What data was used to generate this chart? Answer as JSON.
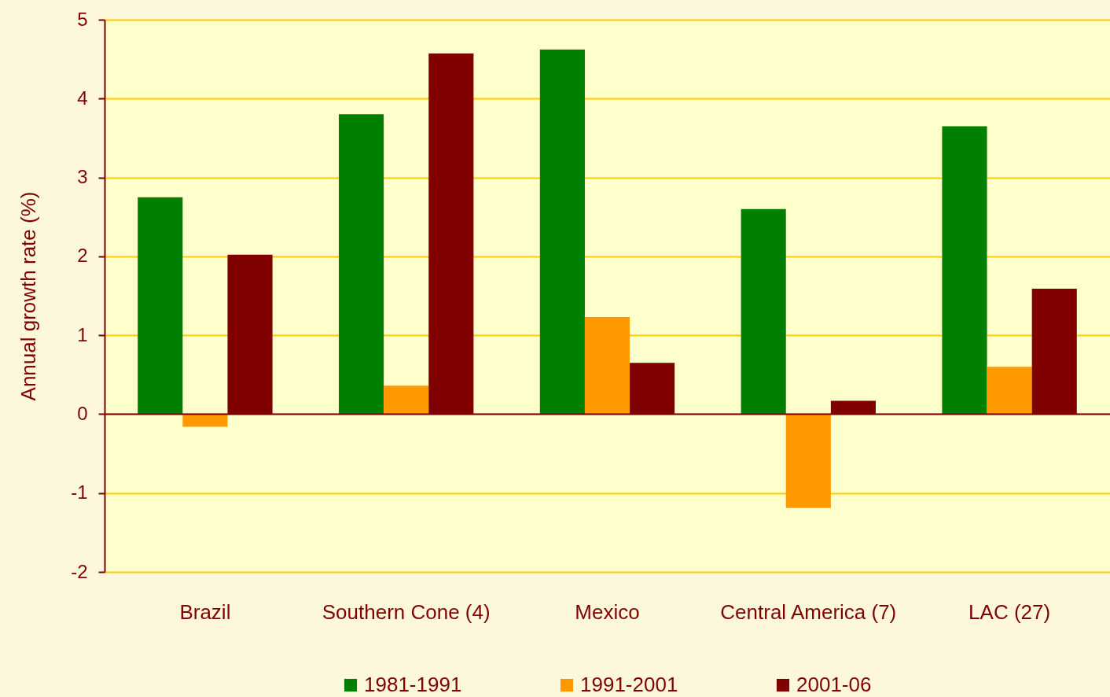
{
  "chart_data": {
    "type": "bar",
    "ylabel": "Annual growth rate (%)",
    "categories": [
      "Brazil",
      "Southern Cone (4)",
      "Mexico",
      "Central  America (7)",
      "LAC (27)"
    ],
    "series": [
      {
        "name": "1981-1991",
        "color": "#008000",
        "values": [
          2.75,
          3.8,
          4.62,
          2.6,
          3.65
        ]
      },
      {
        "name": "1991-2001",
        "color": "#ff9900",
        "values": [
          -0.16,
          0.36,
          1.23,
          -1.19,
          0.6
        ]
      },
      {
        "name": "2001-06",
        "color": "#800000",
        "values": [
          2.02,
          4.57,
          0.65,
          0.17,
          1.59
        ]
      }
    ],
    "ylim": [
      -2,
      5
    ],
    "yticks": [
      -2,
      -1,
      0,
      1,
      2,
      3,
      4,
      5
    ],
    "grid": "y",
    "legend": "bottom",
    "ref_lines": [
      {
        "axis": "y",
        "value": 0,
        "color": "#800000"
      }
    ]
  }
}
